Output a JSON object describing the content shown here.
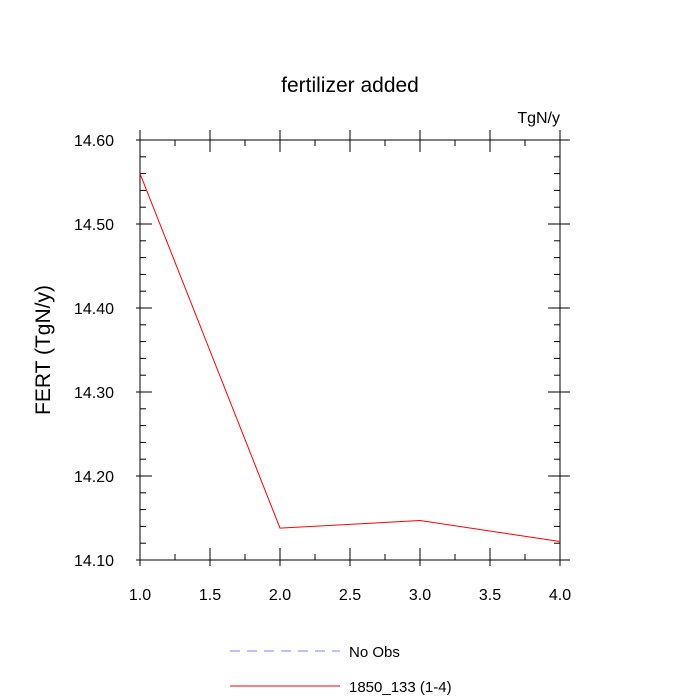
{
  "chart_data": {
    "type": "line",
    "title": "fertilizer added",
    "units": "TgN/y",
    "ylabel": "FERT  (TgN/y)",
    "xlabel": "",
    "xlim": [
      1.0,
      4.0
    ],
    "ylim": [
      14.1,
      14.6
    ],
    "x_ticks": [
      "1.0",
      "1.5",
      "2.0",
      "2.5",
      "3.0",
      "3.5",
      "4.0"
    ],
    "y_ticks": [
      "14.10",
      "14.20",
      "14.30",
      "14.40",
      "14.50",
      "14.60"
    ],
    "grid": false,
    "legend_position": "bottom",
    "series": [
      {
        "name": "No Obs",
        "color": "#8080ff",
        "dash": "dashed",
        "x": [],
        "values": []
      },
      {
        "name": "1850_133 (1-4)",
        "color": "#ff0000",
        "dash": "solid",
        "x": [
          1.0,
          2.0,
          3.0,
          4.0
        ],
        "values": [
          14.56,
          14.138,
          14.147,
          14.122
        ]
      }
    ]
  }
}
